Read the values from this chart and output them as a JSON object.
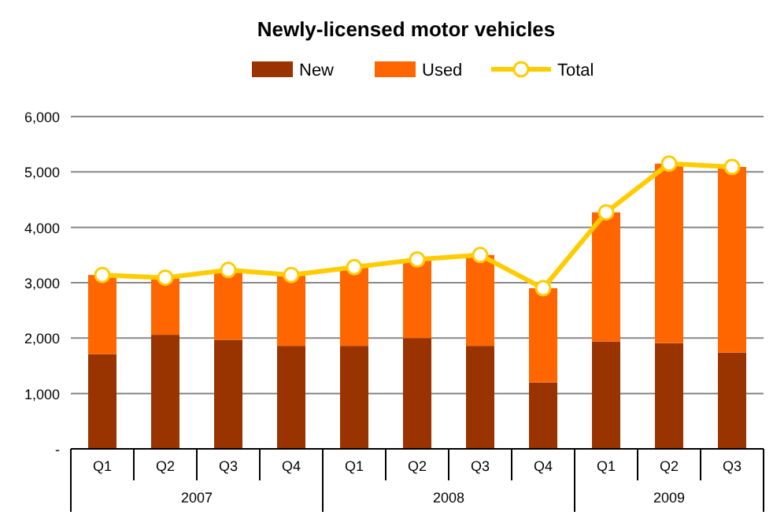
{
  "chart_data": {
    "type": "bar",
    "title": "Newly-licensed motor vehicles",
    "stacked": true,
    "categories": [
      "Q1",
      "Q2",
      "Q3",
      "Q4",
      "Q1",
      "Q2",
      "Q3",
      "Q4",
      "Q1",
      "Q2",
      "Q3"
    ],
    "series": [
      {
        "name": "New",
        "color": "#993300",
        "values": [
          1710,
          2060,
          1970,
          1860,
          1860,
          2000,
          1860,
          1200,
          1940,
          1910,
          1740
        ]
      },
      {
        "name": "Used",
        "color": "#ff6600",
        "values": [
          1430,
          1030,
          1260,
          1280,
          1420,
          1420,
          1640,
          1700,
          2330,
          3240,
          3350
        ]
      },
      {
        "name": "Total",
        "type": "line",
        "color": "#ffcc00",
        "marker": "circle",
        "values": [
          3140,
          3090,
          3230,
          3140,
          3280,
          3420,
          3500,
          2900,
          4270,
          5150,
          5090
        ]
      }
    ],
    "ylim": [
      0,
      6000
    ],
    "yticks": [
      {
        "value": 0,
        "label": "-"
      },
      {
        "value": 1000,
        "label": "1,000"
      },
      {
        "value": 2000,
        "label": "2,000"
      },
      {
        "value": 3000,
        "label": "3,000"
      },
      {
        "value": 4000,
        "label": "4,000"
      },
      {
        "value": 5000,
        "label": "5,000"
      },
      {
        "value": 6000,
        "label": "6,000"
      }
    ],
    "grid": "y",
    "legend": "top",
    "annotations": [
      "2007",
      "2008",
      "2009"
    ]
  }
}
